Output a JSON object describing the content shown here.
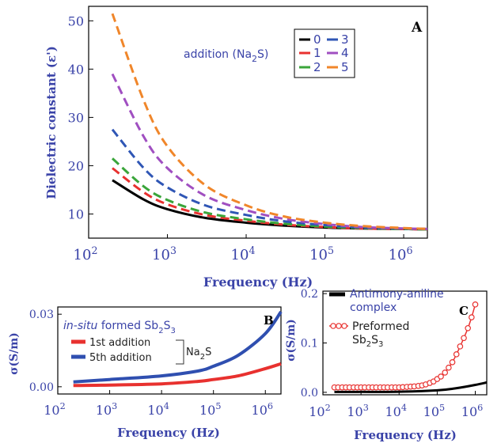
{
  "chart_data": [
    {
      "id": "A",
      "panel_label": "A",
      "type": "line",
      "x_scale": "log",
      "xlim": [
        100,
        2000000
      ],
      "ylim": [
        5,
        53
      ],
      "xlabel": "Frequency (Hz)",
      "ylabel": "Dielectric constant (ε')",
      "x_ticks": [
        {
          "value": 100,
          "label": "10",
          "exp": "2"
        },
        {
          "value": 1000,
          "label": "10",
          "exp": "3"
        },
        {
          "value": 10000,
          "label": "10",
          "exp": "4"
        },
        {
          "value": 100000,
          "label": "10",
          "exp": "5"
        },
        {
          "value": 1000000,
          "label": "10",
          "exp": "6"
        }
      ],
      "y_ticks": [
        10,
        20,
        30,
        40,
        50
      ],
      "legend_title": {
        "text": "addition (Na",
        "sub": "2",
        "tail": "S)"
      },
      "x": [
        200,
        500,
        1000,
        3000,
        10000,
        30000,
        100000,
        300000,
        1000000,
        2000000
      ],
      "series": [
        {
          "name": "0",
          "color": "#000000",
          "style": "solid",
          "values": [
            17.0,
            13.0,
            11.0,
            9.2,
            8.2,
            7.6,
            7.2,
            7.0,
            6.9,
            6.8
          ]
        },
        {
          "name": "1",
          "color": "#e8312f",
          "style": "dashed",
          "values": [
            19.5,
            14.5,
            12.0,
            9.8,
            8.6,
            7.8,
            7.3,
            7.0,
            6.9,
            6.8
          ]
        },
        {
          "name": "2",
          "color": "#3aa53a",
          "style": "dashed",
          "values": [
            21.5,
            15.7,
            12.9,
            10.3,
            8.9,
            8.0,
            7.4,
            7.1,
            6.9,
            6.8
          ]
        },
        {
          "name": "3",
          "color": "#2f56b5",
          "style": "dashed",
          "values": [
            27.5,
            19.5,
            15.5,
            11.8,
            9.8,
            8.5,
            7.7,
            7.2,
            7.0,
            6.9
          ]
        },
        {
          "name": "4",
          "color": "#a04fc1",
          "style": "dashed",
          "values": [
            39.0,
            26.0,
            19.5,
            13.8,
            10.8,
            9.0,
            7.9,
            7.3,
            7.0,
            6.9
          ]
        },
        {
          "name": "5",
          "color": "#f0862a",
          "style": "dashed",
          "values": [
            51.5,
            33.5,
            24.0,
            16.0,
            11.8,
            9.5,
            8.2,
            7.5,
            7.1,
            6.9
          ]
        }
      ]
    },
    {
      "id": "B",
      "panel_label": "B",
      "type": "line",
      "x_scale": "log",
      "xlim": [
        100,
        2000000
      ],
      "ylim": [
        -0.003,
        0.033
      ],
      "xlabel": "Frequency (Hz)",
      "ylabel": "σ(S/m)",
      "x_ticks": [
        {
          "value": 100,
          "label": "10",
          "exp": "2"
        },
        {
          "value": 1000,
          "label": "10",
          "exp": "3"
        },
        {
          "value": 10000,
          "label": "10",
          "exp": "4"
        },
        {
          "value": 100000,
          "label": "10",
          "exp": "5"
        },
        {
          "value": 1000000,
          "label": "10",
          "exp": "6"
        }
      ],
      "y_ticks": [
        {
          "value": 0.0,
          "label": "0.00"
        },
        {
          "value": 0.03,
          "label": "0.03"
        }
      ],
      "annotation": {
        "pre": "in-situ",
        "mid": " formed Sb",
        "sub": "2",
        "tail": "S",
        "sub2": "3"
      },
      "group_label": {
        "text": "Na",
        "sub": "2",
        "tail": "S"
      },
      "x": [
        200,
        1000,
        10000,
        50000,
        100000,
        300000,
        1000000,
        2000000
      ],
      "series": [
        {
          "name": "1st addition",
          "color": "#e8312f",
          "values": [
            0.0005,
            0.0007,
            0.0012,
            0.0022,
            0.003,
            0.0045,
            0.0075,
            0.0095
          ]
        },
        {
          "name": "5th addition",
          "color": "#2f4fb0",
          "values": [
            0.002,
            0.003,
            0.0045,
            0.0065,
            0.0085,
            0.013,
            0.022,
            0.031
          ]
        }
      ]
    },
    {
      "id": "C",
      "panel_label": "C",
      "type": "line",
      "x_scale": "log",
      "xlim": [
        100,
        2000000
      ],
      "ylim": [
        -0.005,
        0.205
      ],
      "xlabel": "Frequency (Hz)",
      "ylabel": "σ(S/m)",
      "x_ticks": [
        {
          "value": 100,
          "label": "10",
          "exp": "2"
        },
        {
          "value": 1000,
          "label": "10",
          "exp": "3"
        },
        {
          "value": 10000,
          "label": "10",
          "exp": "4"
        },
        {
          "value": 100000,
          "label": "10",
          "exp": "5"
        },
        {
          "value": 1000000,
          "label": "10",
          "exp": "6"
        }
      ],
      "y_ticks": [
        {
          "value": 0.0,
          "label": "0.0"
        },
        {
          "value": 0.1,
          "label": "0.1"
        },
        {
          "value": 0.2,
          "label": "0.2"
        }
      ],
      "series": [
        {
          "name": "Antimony-aniline complex",
          "color": "#000000",
          "marker": false,
          "x": [
            200,
            1000,
            10000,
            100000,
            300000,
            1000000,
            2000000
          ],
          "values": [
            0.0008,
            0.0009,
            0.0012,
            0.004,
            0.008,
            0.015,
            0.02
          ]
        },
        {
          "name": "Preformed Sb2S3",
          "legend": {
            "text": "Preformed",
            "line2": "Sb",
            "sub": "2",
            "tail": "S",
            "sub2": "3"
          },
          "color": "#e8312f",
          "marker": true,
          "x": [
            200,
            250,
            320,
            400,
            500,
            640,
            800,
            1000,
            1250,
            1600,
            2000,
            2500,
            3200,
            4000,
            5000,
            6400,
            8000,
            10000,
            12500,
            16000,
            20000,
            25000,
            32000,
            40000,
            50000,
            64000,
            80000,
            100000,
            125000,
            160000,
            200000,
            250000,
            320000,
            400000,
            500000,
            640000,
            800000,
            1000000
          ],
          "values": [
            0.01,
            0.01,
            0.01,
            0.01,
            0.01,
            0.01,
            0.01,
            0.01,
            0.01,
            0.01,
            0.01,
            0.01,
            0.01,
            0.01,
            0.01,
            0.01,
            0.01,
            0.01,
            0.0105,
            0.011,
            0.0115,
            0.012,
            0.013,
            0.014,
            0.016,
            0.019,
            0.022,
            0.027,
            0.032,
            0.04,
            0.05,
            0.061,
            0.077,
            0.093,
            0.11,
            0.13,
            0.152,
            0.178
          ]
        }
      ]
    }
  ]
}
